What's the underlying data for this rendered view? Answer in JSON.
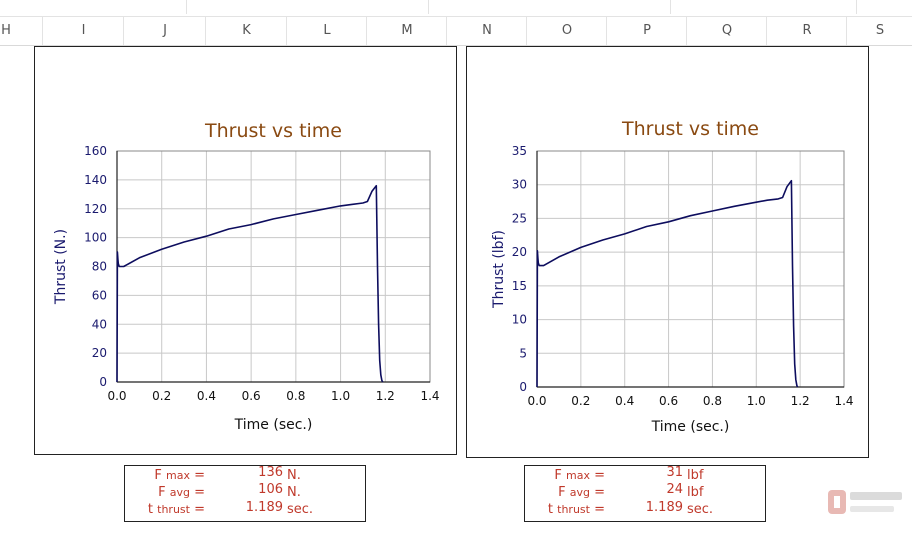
{
  "spreadsheet": {
    "columns": [
      "H",
      "I",
      "J",
      "K",
      "L",
      "M",
      "N",
      "O",
      "P",
      "Q",
      "R",
      "S"
    ]
  },
  "chart_data": [
    {
      "type": "line",
      "title": "Thrust vs time",
      "xlabel": "Time  (sec.)",
      "ylabel": "Thrust  (N.)",
      "xlim": [
        0,
        1.4
      ],
      "ylim": [
        0,
        160
      ],
      "xticks": [
        "0.0",
        "0.2",
        "0.4",
        "0.6",
        "0.8",
        "1.0",
        "1.2",
        "1.4"
      ],
      "yticks": [
        "0",
        "20",
        "40",
        "60",
        "80",
        "100",
        "120",
        "140",
        "160"
      ],
      "grid": true,
      "series": [
        {
          "x": [
            0,
            0.002,
            0.004,
            0.006,
            0.01,
            0.03,
            0.1,
            0.2,
            0.3,
            0.4,
            0.5,
            0.6,
            0.7,
            0.8,
            0.9,
            1.0,
            1.05,
            1.1,
            1.12,
            1.14,
            1.16,
            1.165,
            1.17,
            1.175,
            1.18,
            1.185,
            1.189
          ],
          "y": [
            0,
            90,
            85,
            82,
            80,
            80,
            86,
            92,
            97,
            101,
            106,
            109,
            113,
            116,
            119,
            122,
            123,
            124,
            125,
            132,
            136,
            80,
            40,
            15,
            5,
            1,
            0
          ]
        }
      ]
    },
    {
      "type": "line",
      "title": "Thrust vs time",
      "xlabel": "Time  (sec.)",
      "ylabel": "Thrust  (lbf)",
      "xlim": [
        0,
        1.4
      ],
      "ylim": [
        0,
        35
      ],
      "xticks": [
        "0.0",
        "0.2",
        "0.4",
        "0.6",
        "0.8",
        "1.0",
        "1.2",
        "1.4"
      ],
      "yticks": [
        "0",
        "5",
        "10",
        "15",
        "20",
        "25",
        "30",
        "35"
      ],
      "grid": true,
      "series": [
        {
          "x": [
            0,
            0.002,
            0.004,
            0.006,
            0.01,
            0.03,
            0.1,
            0.2,
            0.3,
            0.4,
            0.5,
            0.6,
            0.7,
            0.8,
            0.9,
            1.0,
            1.05,
            1.1,
            1.12,
            1.14,
            1.16,
            1.165,
            1.17,
            1.175,
            1.18,
            1.185,
            1.189
          ],
          "y": [
            0,
            20.2,
            19.1,
            18.4,
            18,
            18,
            19.3,
            20.7,
            21.8,
            22.7,
            23.8,
            24.5,
            25.4,
            26.1,
            26.8,
            27.4,
            27.7,
            27.9,
            28.1,
            29.7,
            30.6,
            18,
            9,
            3.4,
            1.1,
            0.2,
            0
          ]
        }
      ]
    }
  ],
  "stats": [
    {
      "rows": [
        {
          "label": "F",
          "sub": "max",
          "eq": " =",
          "value": "136",
          "unit": "N."
        },
        {
          "label": "F",
          "sub": "avg",
          "eq": " =",
          "value": "106",
          "unit": "N."
        },
        {
          "label": "t",
          "sub": "thrust",
          "eq": " =",
          "value": "1.189",
          "unit": "sec."
        }
      ]
    },
    {
      "rows": [
        {
          "label": "F",
          "sub": "max",
          "eq": " =",
          "value": "31",
          "unit": "lbf"
        },
        {
          "label": "F",
          "sub": "avg",
          "eq": " =",
          "value": "24",
          "unit": "lbf"
        },
        {
          "label": "t",
          "sub": "thrust",
          "eq": " =",
          "value": "1.189",
          "unit": "sec."
        }
      ]
    }
  ],
  "colors": {
    "title": "#8a4a12",
    "axis_text": "#1a1a6e",
    "line": "#0d0d5e",
    "grid": "#c8c8c8",
    "stats_text": "#c0392b"
  }
}
